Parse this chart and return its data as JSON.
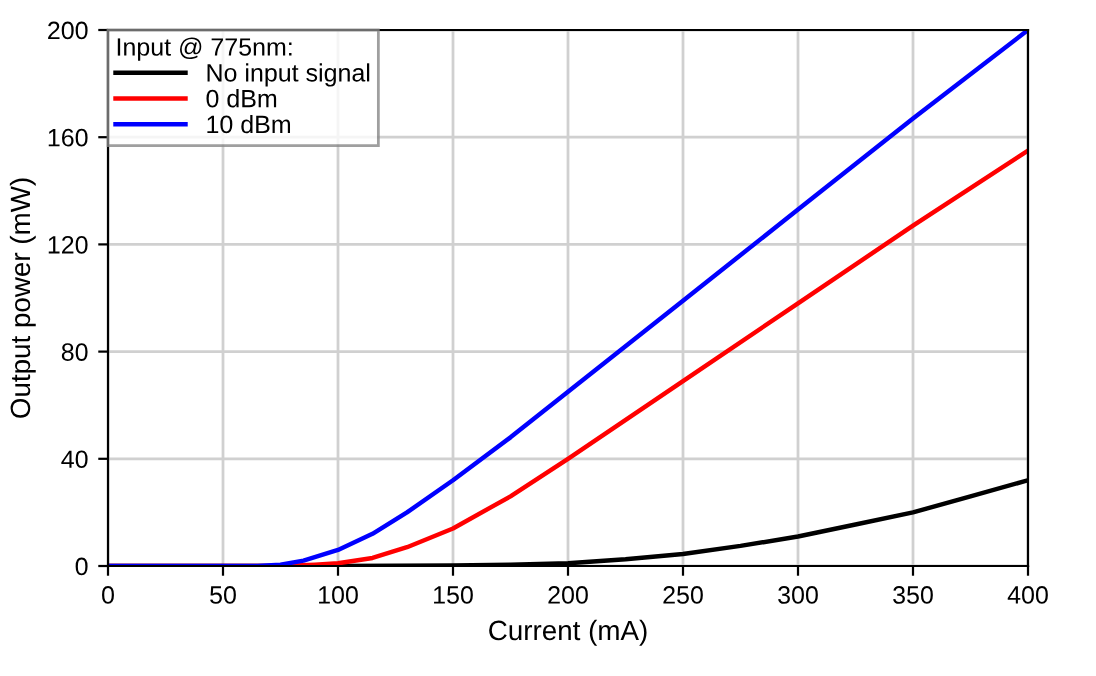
{
  "chart_data": {
    "type": "line",
    "xlabel": "Current (mA)",
    "ylabel": "Output power (mW)",
    "legend_title": "Input @ 775nm:",
    "xlim": [
      0,
      400
    ],
    "ylim": [
      0,
      200
    ],
    "xticks": [
      0,
      50,
      100,
      150,
      200,
      250,
      300,
      350,
      400
    ],
    "yticks": [
      0,
      40,
      80,
      120,
      160,
      200
    ],
    "grid": true,
    "legend": "top left",
    "line_style": "solid",
    "marker": "none",
    "series": [
      {
        "name": "No input signal",
        "color": "#000000",
        "x": [
          0,
          100,
          150,
          175,
          200,
          225,
          250,
          275,
          300,
          325,
          350,
          375,
          400
        ],
        "values": [
          0,
          0,
          0.2,
          0.5,
          1,
          2.5,
          4.5,
          7.5,
          11,
          15.5,
          20,
          26,
          32
        ]
      },
      {
        "name": "0 dBm",
        "color": "#ff0000",
        "x": [
          0,
          75,
          90,
          100,
          115,
          130,
          150,
          175,
          200,
          250,
          300,
          350,
          400
        ],
        "values": [
          0,
          0,
          0.5,
          1,
          3,
          7,
          14,
          26,
          40,
          69,
          98,
          127,
          155
        ]
      },
      {
        "name": "10 dBm",
        "color": "#0000ff",
        "x": [
          0,
          65,
          75,
          85,
          100,
          115,
          130,
          150,
          175,
          200,
          250,
          300,
          350,
          400
        ],
        "values": [
          0,
          0,
          0.5,
          2,
          6,
          12,
          20,
          32,
          48,
          65,
          99,
          133,
          167,
          200
        ]
      }
    ]
  }
}
